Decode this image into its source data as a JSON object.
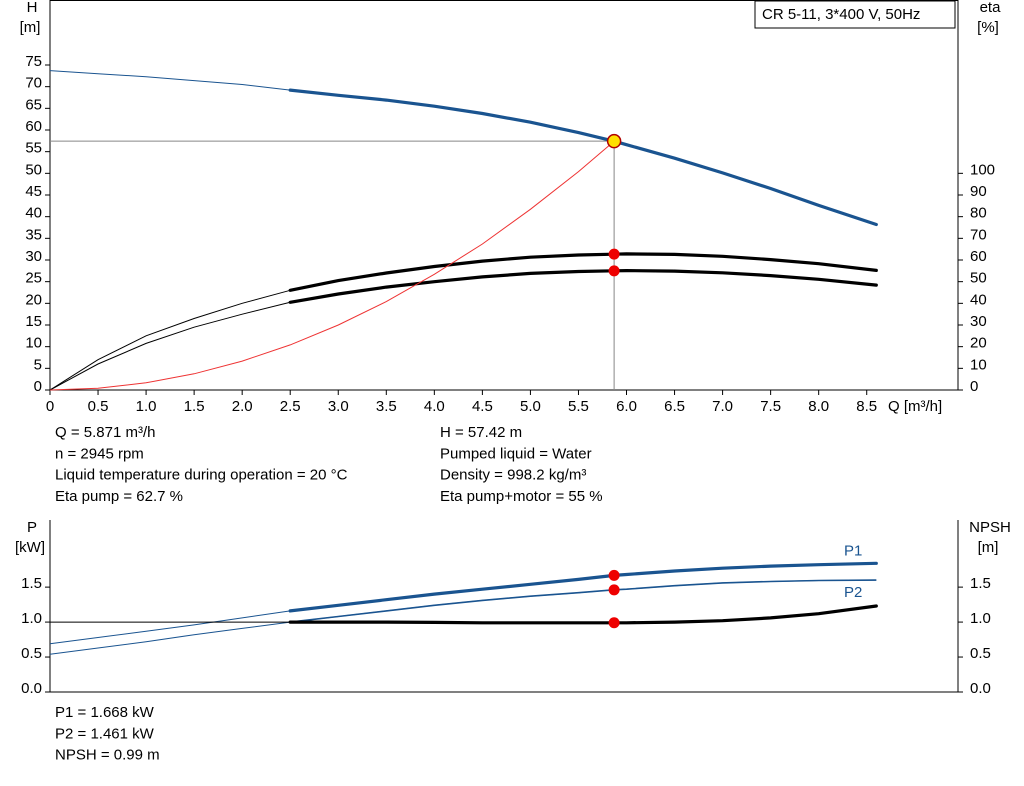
{
  "chart_data": [
    {
      "type": "line",
      "title": "CR 5-11, 3*400 V, 50Hz",
      "ylabel": "H",
      "ylabel_unit": "[m]",
      "y2label": "eta",
      "y2label_unit": "[%]",
      "xlabel": "Q [m³/h]",
      "x": [
        0,
        0.5,
        1,
        1.5,
        2,
        2.5,
        3,
        3.5,
        4,
        4.5,
        5,
        5.5,
        5.871,
        6,
        6.5,
        7,
        7.5,
        8,
        8.6
      ],
      "xlim": [
        0,
        9.45
      ],
      "xticks": [
        0,
        0.5,
        {
          "value": 1,
          "label": "1.0"
        },
        1.5,
        {
          "value": 2,
          "label": "2.0"
        },
        2.5,
        {
          "value": 3,
          "label": "3.0"
        },
        3.5,
        {
          "value": 4,
          "label": "4.0"
        },
        4.5,
        {
          "value": 5,
          "label": "5.0"
        },
        5.5,
        {
          "value": 6,
          "label": "6.0"
        },
        6.5,
        {
          "value": 7,
          "label": "7.0"
        },
        7.5,
        {
          "value": 8,
          "label": "8.0"
        },
        8.5
      ],
      "ylim": [
        0,
        90
      ],
      "yticks": [
        0,
        5,
        10,
        15,
        20,
        25,
        30,
        35,
        40,
        45,
        50,
        55,
        60,
        65,
        70,
        75
      ],
      "y2lim": [
        0,
        180
      ],
      "y2ticks": [
        0,
        10,
        20,
        30,
        40,
        50,
        60,
        70,
        80,
        90,
        100
      ],
      "operating_range": [
        2.5,
        8.6
      ],
      "operating_point": 5.871,
      "series": [
        {
          "color": "#1a5490",
          "marker_color": "#ffe000",
          "values": [
            73.7,
            73.0,
            72.3,
            71.4,
            70.5,
            69.2,
            68.0,
            66.9,
            65.5,
            63.8,
            61.8,
            59.4,
            57.42,
            56.6,
            53.5,
            50.1,
            46.5,
            42.6,
            38.2
          ]
        },
        {
          "color": "#000000",
          "marker_color": "#ee0000",
          "axis": "y2",
          "values": [
            0,
            14,
            25,
            33,
            40,
            46,
            50.5,
            54,
            57,
            59.5,
            61.3,
            62.3,
            62.7,
            62.8,
            62.6,
            61.7,
            60.2,
            58.3,
            55.2
          ]
        },
        {
          "color": "#000000",
          "marker_color": "#ee0000",
          "axis": "y2",
          "values": [
            0,
            12,
            21.5,
            29,
            35,
            40.5,
            44.3,
            47.5,
            50,
            52.2,
            53.8,
            54.7,
            55,
            55.1,
            54.9,
            54.1,
            52.8,
            51.1,
            48.4
          ]
        },
        {
          "color": "#ee3333",
          "thin_only": true,
          "values": [
            0,
            0.42,
            1.67,
            3.75,
            6.66,
            10.4,
            15,
            20.4,
            26.7,
            33.7,
            41.7,
            50.4,
            57.42,
            null,
            null,
            null,
            null,
            null,
            null
          ]
        }
      ],
      "info_left": [
        "Q = 5.871 m³/h",
        "n = 2945 rpm",
        "Liquid temperature during operation = 20 °C",
        "Eta pump = 62.7 %"
      ],
      "info_right": [
        "H = 57.42 m",
        "Pumped liquid = Water",
        "Density = 998.2 kg/m³",
        "Eta pump+motor = 55 %"
      ]
    },
    {
      "type": "line",
      "ylabel": "P",
      "ylabel_unit": "[kW]",
      "y2label": "NPSH",
      "y2label_unit": "[m]",
      "x": [
        0,
        0.5,
        1,
        1.5,
        2,
        2.5,
        3,
        3.5,
        4,
        4.5,
        5,
        5.5,
        5.871,
        6,
        6.5,
        7,
        7.5,
        8,
        8.6
      ],
      "xlim": [
        0,
        9.45
      ],
      "ylim": [
        0,
        2.46
      ],
      "yticks": [
        {
          "value": 0,
          "label": "0.0"
        },
        0.5,
        {
          "value": 1,
          "label": "1.0"
        },
        1.5
      ],
      "y2lim": [
        0,
        2.46
      ],
      "y2ticks": [
        {
          "value": 0,
          "label": "0.0"
        },
        0.5,
        {
          "value": 1,
          "label": "1.0"
        },
        1.5
      ],
      "operating_range": [
        2.5,
        8.6
      ],
      "operating_point": 5.871,
      "series": [
        {
          "name": "P1",
          "color": "#1a5490",
          "marker_color": "#ee0000",
          "values": [
            0.69,
            0.78,
            0.87,
            0.96,
            1.06,
            1.16,
            1.24,
            1.32,
            1.4,
            1.47,
            1.54,
            1.61,
            1.668,
            1.68,
            1.73,
            1.77,
            1.8,
            1.82,
            1.84
          ]
        },
        {
          "name": "P2",
          "color": "#1a5490",
          "marker_color": "#ee0000",
          "thin_only": true,
          "values": [
            0.54,
            0.63,
            0.72,
            0.82,
            0.91,
            1.0,
            1.08,
            1.16,
            1.24,
            1.31,
            1.37,
            1.42,
            1.461,
            1.47,
            1.52,
            1.56,
            1.58,
            1.595,
            1.6
          ]
        },
        {
          "color": "#000000",
          "marker_color": "#ee0000",
          "axis": "y2",
          "values": [
            1.0,
            1.0,
            1.0,
            1.0,
            1.0,
            1.0,
            1.0,
            1.0,
            0.995,
            0.99,
            0.99,
            0.99,
            0.99,
            0.99,
            1.0,
            1.02,
            1.06,
            1.12,
            1.23
          ]
        }
      ],
      "info_left": [
        "P1 = 1.668 kW",
        "P2 = 1.461 kW",
        "NPSH = 0.99 m"
      ]
    }
  ]
}
